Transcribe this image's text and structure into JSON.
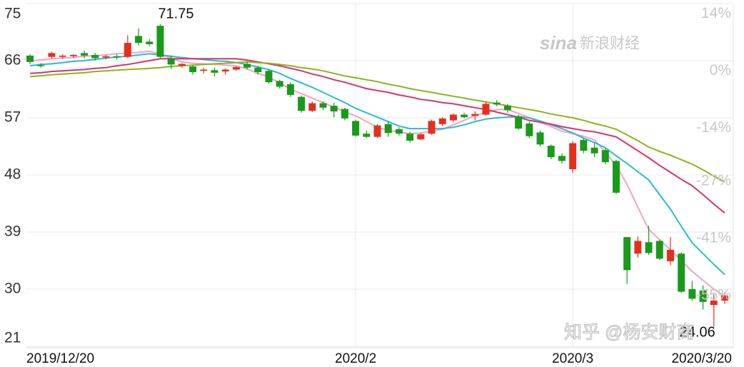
{
  "chart_data": {
    "type": "candlestick",
    "categories": [
      "2019/12/20",
      null,
      null,
      null,
      null,
      null,
      null,
      null,
      null,
      null,
      null,
      null,
      null,
      null,
      null,
      null,
      null,
      null,
      null,
      null,
      null,
      null,
      null,
      null,
      null,
      null,
      null,
      null,
      null,
      null,
      "2020/2",
      null,
      null,
      null,
      null,
      null,
      null,
      null,
      null,
      null,
      null,
      null,
      null,
      null,
      null,
      null,
      null,
      null,
      null,
      null,
      "2020/3",
      null,
      null,
      null,
      null,
      null,
      null,
      null,
      null,
      null,
      null,
      null,
      null,
      null,
      "2020/3/20"
    ],
    "open": [
      66.8,
      65.3,
      66.6,
      66.6,
      66.7,
      67.2,
      66.9,
      66.5,
      66.7,
      66.6,
      69.9,
      69.0,
      71.5,
      66.3,
      65.2,
      65.1,
      64.4,
      64.5,
      64.3,
      64.6,
      65.5,
      64.9,
      64.4,
      62.8,
      62.3,
      60.3,
      58.1,
      59.3,
      58.9,
      58.4,
      56.5,
      54.5,
      54.0,
      56.0,
      55.2,
      54.5,
      53.6,
      54.5,
      56.0,
      56.6,
      57.5,
      57.3,
      57.5,
      59.4,
      58.9,
      57.2,
      56.1,
      54.7,
      52.6,
      51.0,
      48.9,
      53.5,
      52.3,
      51.9,
      50.2,
      38.2,
      35.6,
      37.4,
      37.6,
      34.4,
      35.6,
      30.0,
      29.8,
      27.5,
      28.2
    ],
    "high": [
      67.0,
      65.6,
      67.4,
      67.0,
      67.0,
      67.6,
      67.2,
      66.9,
      67.0,
      70.0,
      71.1,
      69.4,
      71.75,
      66.8,
      65.6,
      65.3,
      64.9,
      64.9,
      64.8,
      65.1,
      65.9,
      65.2,
      64.6,
      63.0,
      62.6,
      60.5,
      59.6,
      59.6,
      59.4,
      58.6,
      56.7,
      55.0,
      56.0,
      56.5,
      55.5,
      54.8,
      54.6,
      56.7,
      57.1,
      57.7,
      57.8,
      58.0,
      59.6,
      59.8,
      59.2,
      57.5,
      56.4,
      55.0,
      52.8,
      51.4,
      53.3,
      53.8,
      53.0,
      52.2,
      50.4,
      38.2,
      38.3,
      40.0,
      37.8,
      38.2,
      35.8,
      31.3,
      30.6,
      29.2,
      29.5
    ],
    "low": [
      65.5,
      64.9,
      66.4,
      66.3,
      66.5,
      66.4,
      66.0,
      66.2,
      66.2,
      66.4,
      68.4,
      68.3,
      66.2,
      64.7,
      64.9,
      63.8,
      64.0,
      63.5,
      63.8,
      64.4,
      64.6,
      63.8,
      62.4,
      61.6,
      60.3,
      57.8,
      57.9,
      58.2,
      57.1,
      56.6,
      54.0,
      53.8,
      53.8,
      54.0,
      54.2,
      53.1,
      53.5,
      54.3,
      55.7,
      56.3,
      56.9,
      56.6,
      57.3,
      58.8,
      57.8,
      55.1,
      53.8,
      52.5,
      50.5,
      49.8,
      48.3,
      51.4,
      50.8,
      49.7,
      45.0,
      30.8,
      35.0,
      35.4,
      34.6,
      33.8,
      29.4,
      28.2,
      26.8,
      24.06,
      27.7
    ],
    "close": [
      65.8,
      65.2,
      67.2,
      66.8,
      66.9,
      66.8,
      66.4,
      66.7,
      66.5,
      68.8,
      68.8,
      68.6,
      66.6,
      65.4,
      65.5,
      64.2,
      64.6,
      64.1,
      64.6,
      65.0,
      64.9,
      64.2,
      62.6,
      61.9,
      60.6,
      58.1,
      59.3,
      58.6,
      58.0,
      56.9,
      54.2,
      54.0,
      55.8,
      54.6,
      54.5,
      53.4,
      54.4,
      56.5,
      56.9,
      57.5,
      57.1,
      57.6,
      59.2,
      59.1,
      58.2,
      55.3,
      54.1,
      52.8,
      50.8,
      50.2,
      53.0,
      51.8,
      51.4,
      50.0,
      45.2,
      33.0,
      37.6,
      35.7,
      34.8,
      36.2,
      29.6,
      28.5,
      28.0,
      28.2,
      29.0
    ],
    "up_color": "#e3301c",
    "down_color": "#1a9a1a",
    "lines": [
      {
        "color": "#f4a3c0",
        "values": [
          66.0,
          66.1,
          66.3,
          66.4,
          66.5,
          66.7,
          66.8,
          66.9,
          67.1,
          67.2,
          67.3,
          67.5,
          67.0,
          66.4,
          65.8,
          65.6,
          65.5,
          65.4,
          65.3,
          65.2,
          64.7,
          64.0,
          63.4,
          62.5,
          61.5,
          60.8,
          60.1,
          59.4,
          58.7,
          57.9,
          57.3,
          56.4,
          55.5,
          55.0,
          54.8,
          54.5,
          54.6,
          54.9,
          55.2,
          55.9,
          56.6,
          57.4,
          57.8,
          58.3,
          58.3,
          57.7,
          57.0,
          56.3,
          55.6,
          54.9,
          54.5,
          54.1,
          53.5,
          51.6,
          49.5,
          46.5,
          42.9,
          39.4,
          37.8,
          36.2,
          34.5,
          32.8,
          31.4,
          30.0,
          28.9
        ]
      },
      {
        "color": "#2bb9d3",
        "values": [
          65.2,
          65.4,
          65.5,
          65.7,
          65.9,
          66.0,
          66.2,
          66.4,
          66.6,
          66.7,
          66.9,
          67.1,
          66.9,
          66.7,
          66.5,
          66.3,
          66.2,
          66.0,
          65.9,
          65.7,
          65.4,
          65.0,
          64.6,
          64.0,
          63.2,
          62.5,
          61.8,
          61.0,
          60.2,
          59.4,
          58.5,
          57.8,
          57.1,
          56.4,
          55.7,
          55.3,
          55.3,
          55.3,
          55.3,
          55.5,
          55.9,
          56.4,
          56.8,
          57.0,
          57.1,
          57.2,
          57.0,
          56.5,
          55.9,
          55.3,
          54.6,
          53.8,
          53.1,
          52.3,
          51.0,
          49.8,
          48.5,
          47.2,
          44.9,
          42.6,
          39.9,
          37.3,
          35.6,
          33.9,
          32.3
        ]
      },
      {
        "color": "#d6336e",
        "values": [
          64.0,
          64.1,
          64.3,
          64.4,
          64.5,
          64.6,
          64.8,
          64.9,
          65.2,
          65.4,
          65.7,
          66.0,
          66.3,
          66.3,
          66.3,
          66.3,
          66.3,
          66.3,
          66.3,
          66.3,
          66.1,
          65.8,
          65.5,
          65.2,
          64.8,
          64.4,
          63.9,
          63.5,
          63.0,
          62.6,
          62.1,
          61.6,
          61.3,
          61.0,
          60.6,
          60.3,
          59.9,
          59.7,
          59.4,
          59.2,
          58.9,
          58.6,
          58.3,
          57.9,
          57.5,
          57.1,
          56.6,
          56.3,
          56.0,
          55.6,
          55.3,
          55.0,
          54.8,
          54.4,
          54.0,
          52.9,
          51.8,
          50.7,
          49.5,
          48.4,
          47.3,
          46.3,
          44.9,
          43.4,
          42.0
        ]
      },
      {
        "color": "#8db31c",
        "values": [
          63.5,
          63.6,
          63.8,
          63.9,
          64.0,
          64.1,
          64.3,
          64.4,
          64.5,
          64.6,
          64.7,
          64.8,
          64.9,
          65.1,
          65.2,
          65.3,
          65.4,
          65.5,
          65.6,
          65.7,
          65.8,
          65.7,
          65.6,
          65.4,
          65.2,
          64.9,
          64.7,
          64.4,
          64.0,
          63.6,
          63.3,
          63.0,
          62.7,
          62.3,
          62.0,
          61.6,
          61.3,
          61.0,
          60.7,
          60.4,
          60.1,
          59.8,
          59.5,
          59.2,
          58.9,
          58.6,
          58.3,
          58.0,
          57.6,
          57.3,
          57.0,
          56.6,
          56.1,
          55.7,
          55.2,
          54.3,
          53.4,
          52.4,
          51.7,
          51.1,
          50.4,
          49.7,
          48.8,
          47.8,
          46.9
        ]
      }
    ],
    "ylim": [
      21,
      75
    ],
    "yticks": [
      75,
      66,
      57,
      48,
      39,
      30,
      21
    ],
    "y2lim": [
      -67.4,
      16.5
    ],
    "y2ticks": [
      {
        "value": 14,
        "label": "14%"
      },
      {
        "value": 0,
        "label": "0%"
      },
      {
        "value": -14,
        "label": "-14%"
      },
      {
        "value": -27,
        "label": "-27%"
      },
      {
        "value": -41,
        "label": "-41%"
      },
      {
        "value": -55,
        "label": "-55%"
      }
    ],
    "grid": true,
    "high_label": "71.75",
    "low_label": "24.06",
    "watermarks": [
      "sina",
      "新浪财经",
      "知乎 @杨安财商"
    ]
  }
}
